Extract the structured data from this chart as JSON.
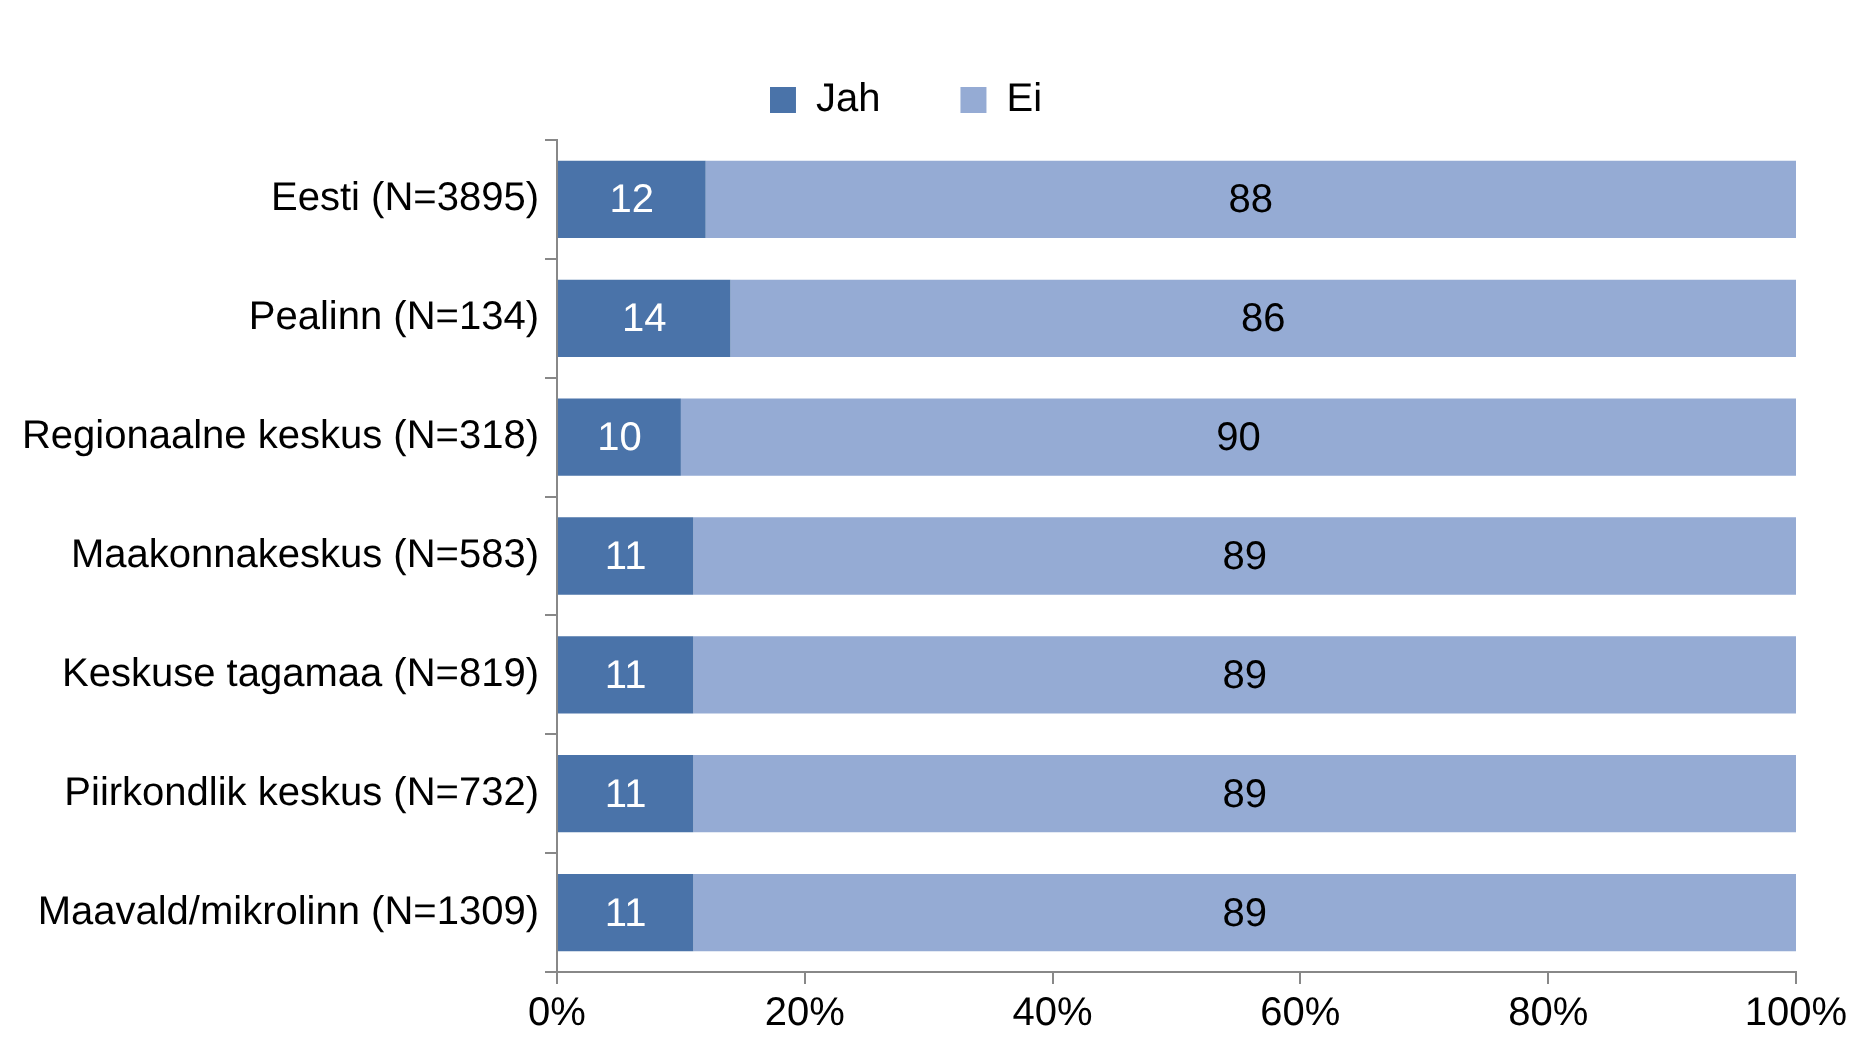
{
  "chart_data": {
    "type": "bar",
    "orientation": "horizontal",
    "stacked": true,
    "categories": [
      "Eesti (N=3895)",
      "Pealinn (N=134)",
      "Regionaalne keskus (N=318)",
      "Maakonnakeskus (N=583)",
      "Keskuse tagamaa (N=819)",
      "Piirkondlik keskus (N=732)",
      "Maavald/mikrolinn (N=1309)"
    ],
    "series": [
      {
        "name": "Jah",
        "color": "#4a73a9",
        "values": [
          12,
          14,
          10,
          11,
          11,
          11,
          11
        ]
      },
      {
        "name": "Ei",
        "color": "#95abd4",
        "values": [
          88,
          86,
          90,
          89,
          89,
          89,
          89
        ]
      }
    ],
    "xlim": [
      0,
      100
    ],
    "xticks": [
      {
        "value": 0,
        "label": "0%"
      },
      {
        "value": 20,
        "label": "20%"
      },
      {
        "value": 40,
        "label": "40%"
      },
      {
        "value": 60,
        "label": "60%"
      },
      {
        "value": 80,
        "label": "80%"
      },
      {
        "value": 100,
        "label": "100%"
      }
    ],
    "data_labels": true,
    "legend": "top",
    "grid": false
  }
}
